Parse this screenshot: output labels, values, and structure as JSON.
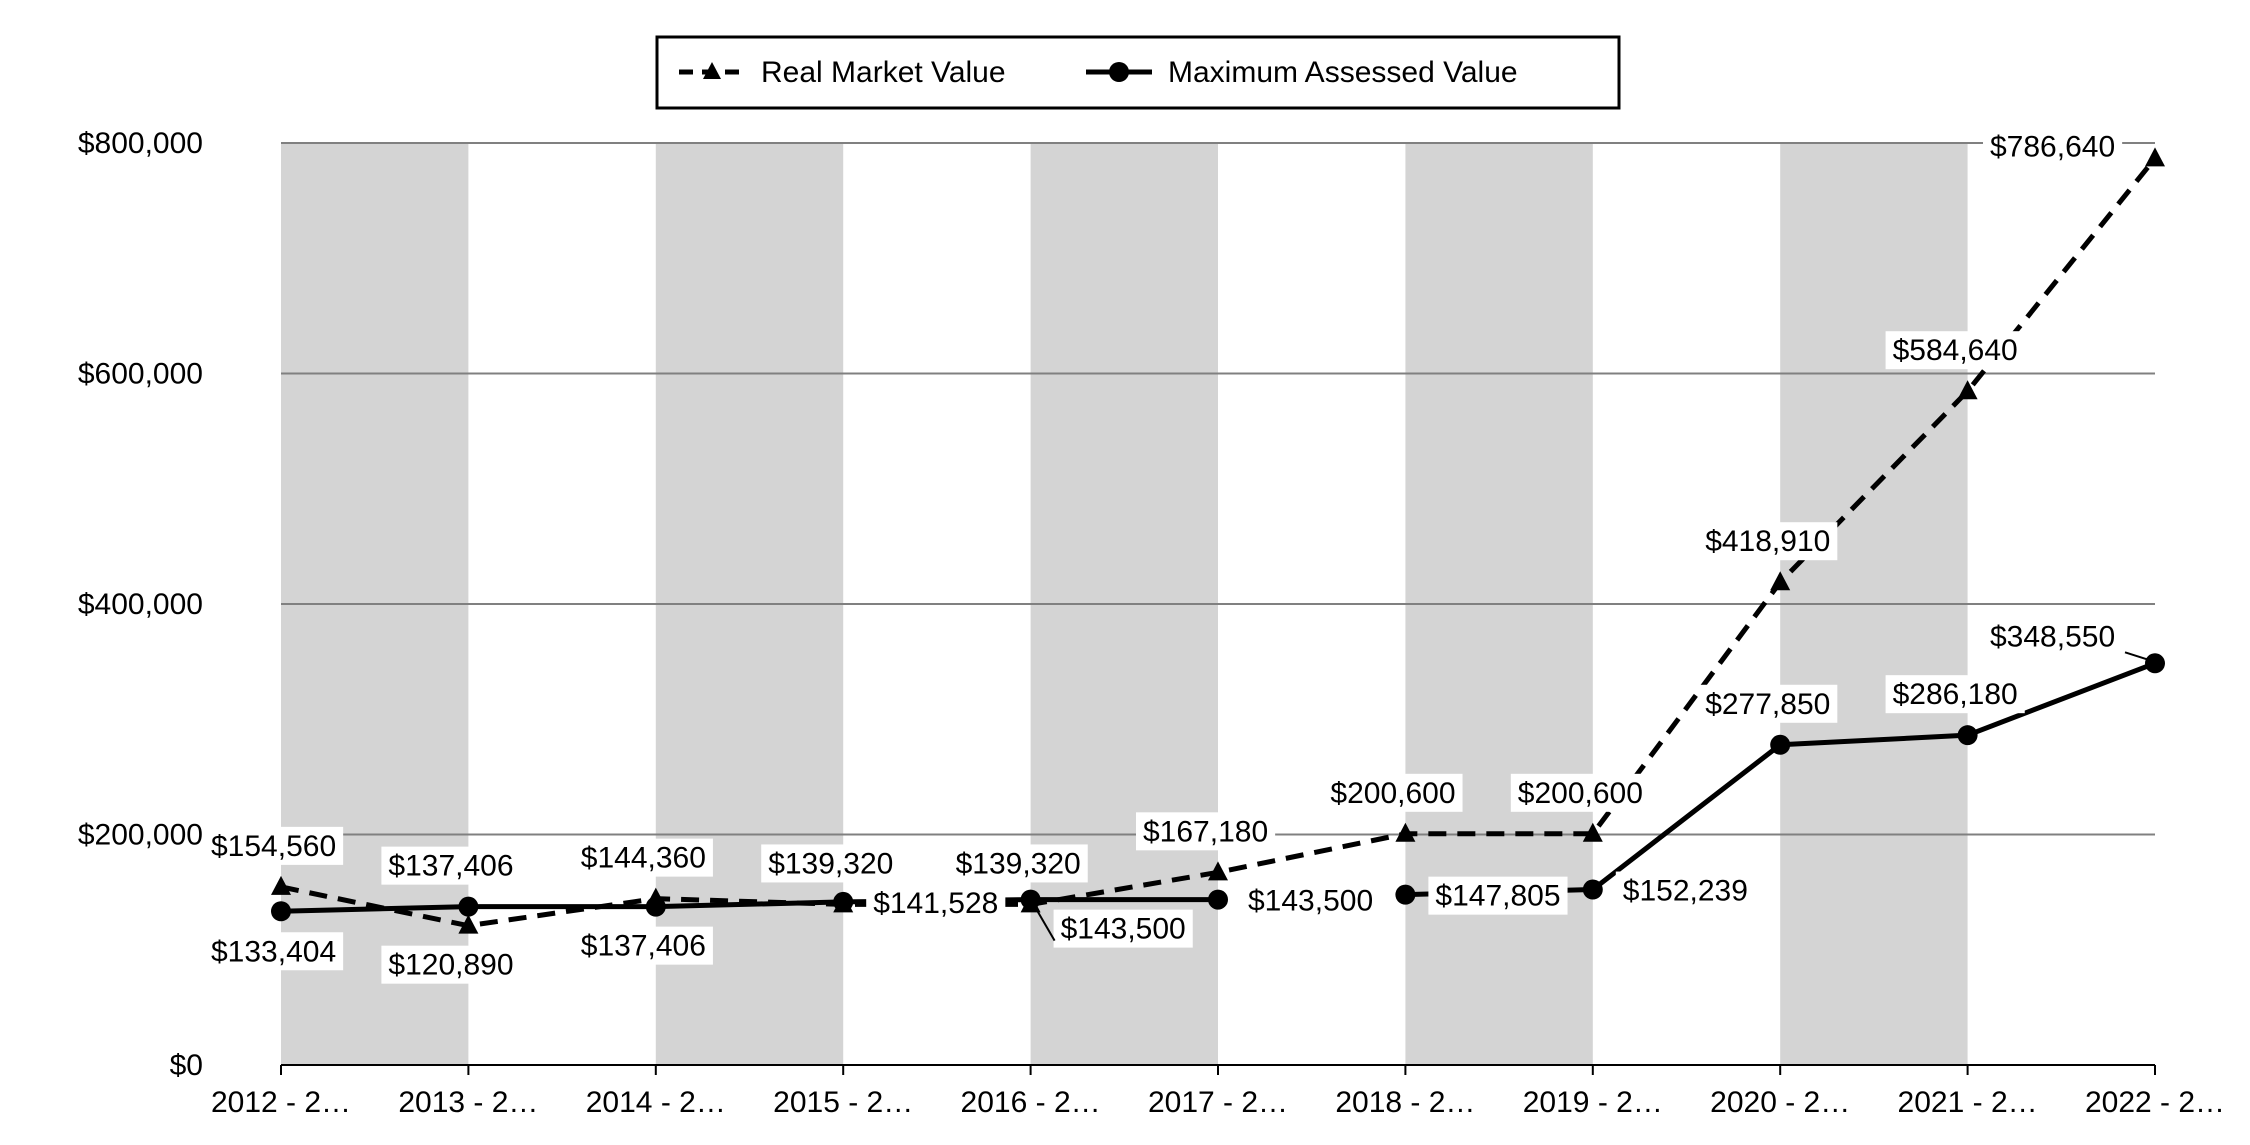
{
  "chart_data": {
    "type": "line",
    "categories": [
      "2012 - 2…",
      "2013 - 2…",
      "2014 - 2…",
      "2015 - 2…",
      "2016 - 2…",
      "2017 - 2…",
      "2018 - 2…",
      "2019 - 2…",
      "2020 - 2…",
      "2021 - 2…",
      "2022 - 2…"
    ],
    "ylim": [
      0,
      800000
    ],
    "yticks": [
      0,
      200000,
      400000,
      600000,
      800000
    ],
    "ytick_labels": [
      "$0",
      "$200,000",
      "$400,000",
      "$600,000",
      "$800,000"
    ],
    "grid": true,
    "alternating_bands": true,
    "legend_position": "top-center",
    "series": [
      {
        "name": "Real Market Value",
        "style": "dashed",
        "marker": "triangle",
        "values": [
          154560,
          120890,
          144360,
          139320,
          139320,
          167180,
          200600,
          200600,
          418910,
          584640,
          786640
        ],
        "labels": [
          "$154,560",
          "$120,890",
          "$144,360",
          "$139,320",
          "$139,320",
          "$167,180",
          "$200,600",
          "$200,600",
          "$418,910",
          "$584,640",
          "$786,640"
        ]
      },
      {
        "name": "Maximum Assessed Value",
        "style": "solid",
        "marker": "circle",
        "values": [
          133404,
          137406,
          137406,
          141528,
          143500,
          143500,
          147805,
          152239,
          277850,
          286180,
          348550
        ],
        "labels": [
          "$133,404",
          "$137,406",
          "$137,406",
          "$141,528",
          "$143,500",
          "$143,500",
          "$147,805",
          "$152,239",
          "$277,850",
          "$286,180",
          "$348,550"
        ]
      }
    ],
    "colors": {
      "band": "#d4d4d4",
      "grid": "#808080",
      "line": "#000000",
      "background": "#ffffff"
    }
  }
}
